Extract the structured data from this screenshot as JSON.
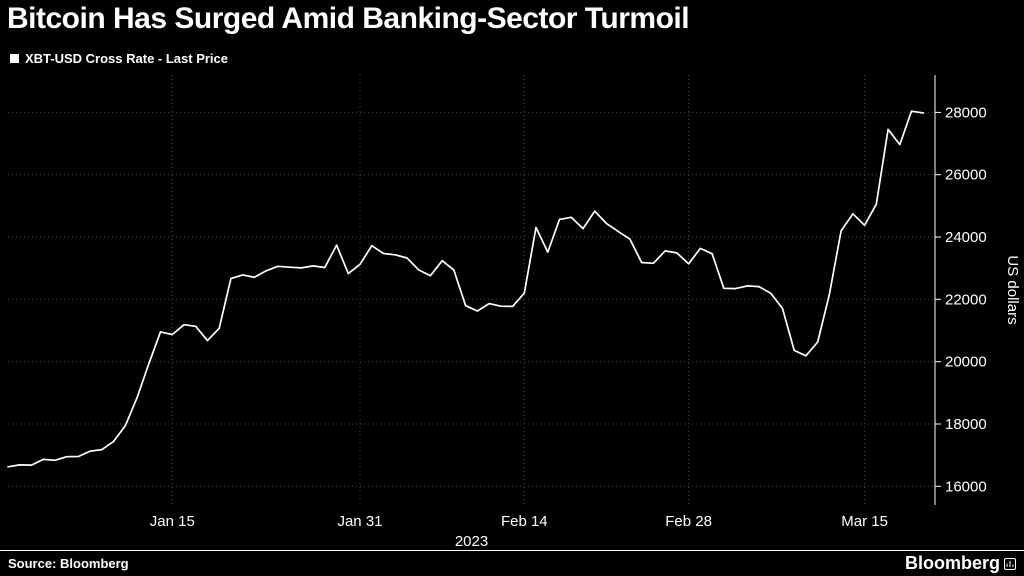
{
  "footer": {
    "source_label": "Source:  Bloomberg",
    "brand": "Bloomberg"
  },
  "chart_data": {
    "type": "line",
    "title": "Bitcoin Has Surged Amid Banking-Sector Turmoil",
    "xlabel": "2023",
    "ylabel": "US dollars",
    "ylim": [
      15400,
      29200
    ],
    "y_ticks": [
      16000,
      18000,
      20000,
      22000,
      24000,
      26000,
      28000
    ],
    "x_ticks": [
      {
        "label": "Jan 15",
        "date": "2023-01-15"
      },
      {
        "label": "Jan 31",
        "date": "2023-01-31"
      },
      {
        "label": "Feb 14",
        "date": "2023-02-14"
      },
      {
        "label": "Feb 28",
        "date": "2023-02-28"
      },
      {
        "label": "Mar 15",
        "date": "2023-03-15"
      }
    ],
    "line_color": "#ffffff",
    "grid_color": "#474747",
    "axis_color": "#ffffff",
    "legend_position": "top-left",
    "grid": "dotted",
    "dates": [
      "2023-01-01",
      "2023-01-02",
      "2023-01-03",
      "2023-01-04",
      "2023-01-05",
      "2023-01-06",
      "2023-01-07",
      "2023-01-08",
      "2023-01-09",
      "2023-01-10",
      "2023-01-11",
      "2023-01-12",
      "2023-01-13",
      "2023-01-14",
      "2023-01-15",
      "2023-01-16",
      "2023-01-17",
      "2023-01-18",
      "2023-01-19",
      "2023-01-20",
      "2023-01-21",
      "2023-01-22",
      "2023-01-23",
      "2023-01-24",
      "2023-01-25",
      "2023-01-26",
      "2023-01-27",
      "2023-01-28",
      "2023-01-29",
      "2023-01-30",
      "2023-01-31",
      "2023-02-01",
      "2023-02-02",
      "2023-02-03",
      "2023-02-04",
      "2023-02-05",
      "2023-02-06",
      "2023-02-07",
      "2023-02-08",
      "2023-02-09",
      "2023-02-10",
      "2023-02-11",
      "2023-02-12",
      "2023-02-13",
      "2023-02-14",
      "2023-02-15",
      "2023-02-16",
      "2023-02-17",
      "2023-02-18",
      "2023-02-19",
      "2023-02-20",
      "2023-02-21",
      "2023-02-22",
      "2023-02-23",
      "2023-02-24",
      "2023-02-25",
      "2023-02-26",
      "2023-02-27",
      "2023-02-28",
      "2023-03-01",
      "2023-03-02",
      "2023-03-03",
      "2023-03-04",
      "2023-03-05",
      "2023-03-06",
      "2023-03-07",
      "2023-03-08",
      "2023-03-09",
      "2023-03-10",
      "2023-03-11",
      "2023-03-12",
      "2023-03-13",
      "2023-03-14",
      "2023-03-15",
      "2023-03-16",
      "2023-03-17",
      "2023-03-18",
      "2023-03-19",
      "2023-03-20"
    ],
    "series": [
      {
        "name": "XBT-USD Cross Rate - Last Price",
        "values": [
          16625,
          16688,
          16679,
          16863,
          16836,
          16951,
          16955,
          17128,
          17178,
          17440,
          17943,
          18846,
          19930,
          20954,
          20872,
          21185,
          21134,
          20677,
          21071,
          22667,
          22783,
          22707,
          22916,
          23062,
          23031,
          23009,
          23074,
          23022,
          23742,
          22827,
          23125,
          23723,
          23471,
          23431,
          23327,
          22945,
          22760,
          23240,
          22939,
          21796,
          21625,
          21862,
          21781,
          21774,
          22199,
          24307,
          23517,
          24565,
          24632,
          24271,
          24829,
          24436,
          24180,
          23935,
          23181,
          23157,
          23554,
          23490,
          23141,
          23634,
          23465,
          22354,
          22346,
          22430,
          22410,
          22198,
          21706,
          20363,
          20187,
          20632,
          22163,
          24197,
          24746,
          24375,
          25052,
          27454,
          26965,
          28038,
          27980
        ]
      }
    ]
  }
}
